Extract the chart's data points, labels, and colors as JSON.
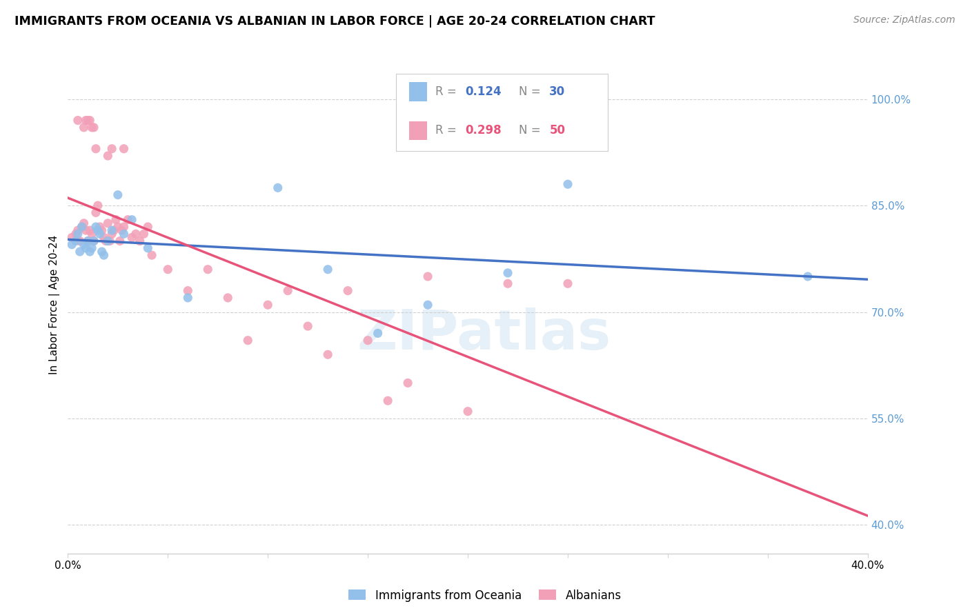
{
  "title": "IMMIGRANTS FROM OCEANIA VS ALBANIAN IN LABOR FORCE | AGE 20-24 CORRELATION CHART",
  "source": "Source: ZipAtlas.com",
  "ylabel": "In Labor Force | Age 20-24",
  "ytick_vals": [
    0.4,
    0.55,
    0.7,
    0.85,
    1.0
  ],
  "ytick_labels": [
    "40.0%",
    "55.0%",
    "70.0%",
    "85.0%",
    "100.0%"
  ],
  "xlim": [
    0.0,
    0.4
  ],
  "ylim": [
    0.36,
    1.06
  ],
  "legend1_R": "0.124",
  "legend1_N": "30",
  "legend2_R": "0.298",
  "legend2_N": "50",
  "color_oceania": "#92c0ea",
  "color_albanian": "#f2a0b8",
  "color_line_oceania": "#4472c4",
  "color_line_albanian": "#e8537a",
  "color_ytick_labels": "#5b9bd5",
  "watermark": "ZIPatlas",
  "oceania_x": [
    0.002,
    0.004,
    0.005,
    0.006,
    0.007,
    0.008,
    0.009,
    0.01,
    0.011,
    0.012,
    0.013,
    0.014,
    0.015,
    0.016,
    0.017,
    0.018,
    0.02,
    0.022,
    0.025,
    0.028,
    0.032,
    0.04,
    0.06,
    0.105,
    0.13,
    0.155,
    0.18,
    0.22,
    0.25,
    0.37
  ],
  "oceania_y": [
    0.795,
    0.8,
    0.81,
    0.785,
    0.82,
    0.795,
    0.79,
    0.8,
    0.785,
    0.79,
    0.8,
    0.82,
    0.815,
    0.81,
    0.785,
    0.78,
    0.8,
    0.815,
    0.865,
    0.81,
    0.83,
    0.79,
    0.72,
    0.875,
    0.76,
    0.67,
    0.71,
    0.755,
    0.88,
    0.75
  ],
  "albanian_x": [
    0.002,
    0.004,
    0.005,
    0.006,
    0.007,
    0.008,
    0.009,
    0.01,
    0.011,
    0.012,
    0.013,
    0.014,
    0.015,
    0.016,
    0.017,
    0.018,
    0.019,
    0.02,
    0.021,
    0.022,
    0.023,
    0.024,
    0.025,
    0.026,
    0.027,
    0.028,
    0.03,
    0.032,
    0.034,
    0.036,
    0.038,
    0.04,
    0.042,
    0.05,
    0.06,
    0.07,
    0.08,
    0.09,
    0.1,
    0.11,
    0.12,
    0.13,
    0.14,
    0.15,
    0.16,
    0.17,
    0.18,
    0.2,
    0.22,
    0.25
  ],
  "albanian_y": [
    0.805,
    0.81,
    0.815,
    0.8,
    0.82,
    0.825,
    0.815,
    0.8,
    0.815,
    0.81,
    0.8,
    0.84,
    0.85,
    0.82,
    0.815,
    0.805,
    0.8,
    0.825,
    0.8,
    0.81,
    0.815,
    0.83,
    0.82,
    0.8,
    0.815,
    0.82,
    0.83,
    0.805,
    0.81,
    0.8,
    0.81,
    0.82,
    0.78,
    0.76,
    0.73,
    0.76,
    0.72,
    0.66,
    0.71,
    0.73,
    0.68,
    0.64,
    0.73,
    0.66,
    0.575,
    0.6,
    0.75,
    0.56,
    0.74,
    0.74
  ],
  "albanian_high_x": [
    0.005,
    0.008,
    0.009,
    0.01,
    0.011,
    0.012,
    0.013,
    0.014,
    0.02,
    0.022,
    0.028
  ],
  "albanian_high_y": [
    0.97,
    0.96,
    0.97,
    0.97,
    0.97,
    0.96,
    0.96,
    0.93,
    0.92,
    0.93,
    0.93
  ]
}
